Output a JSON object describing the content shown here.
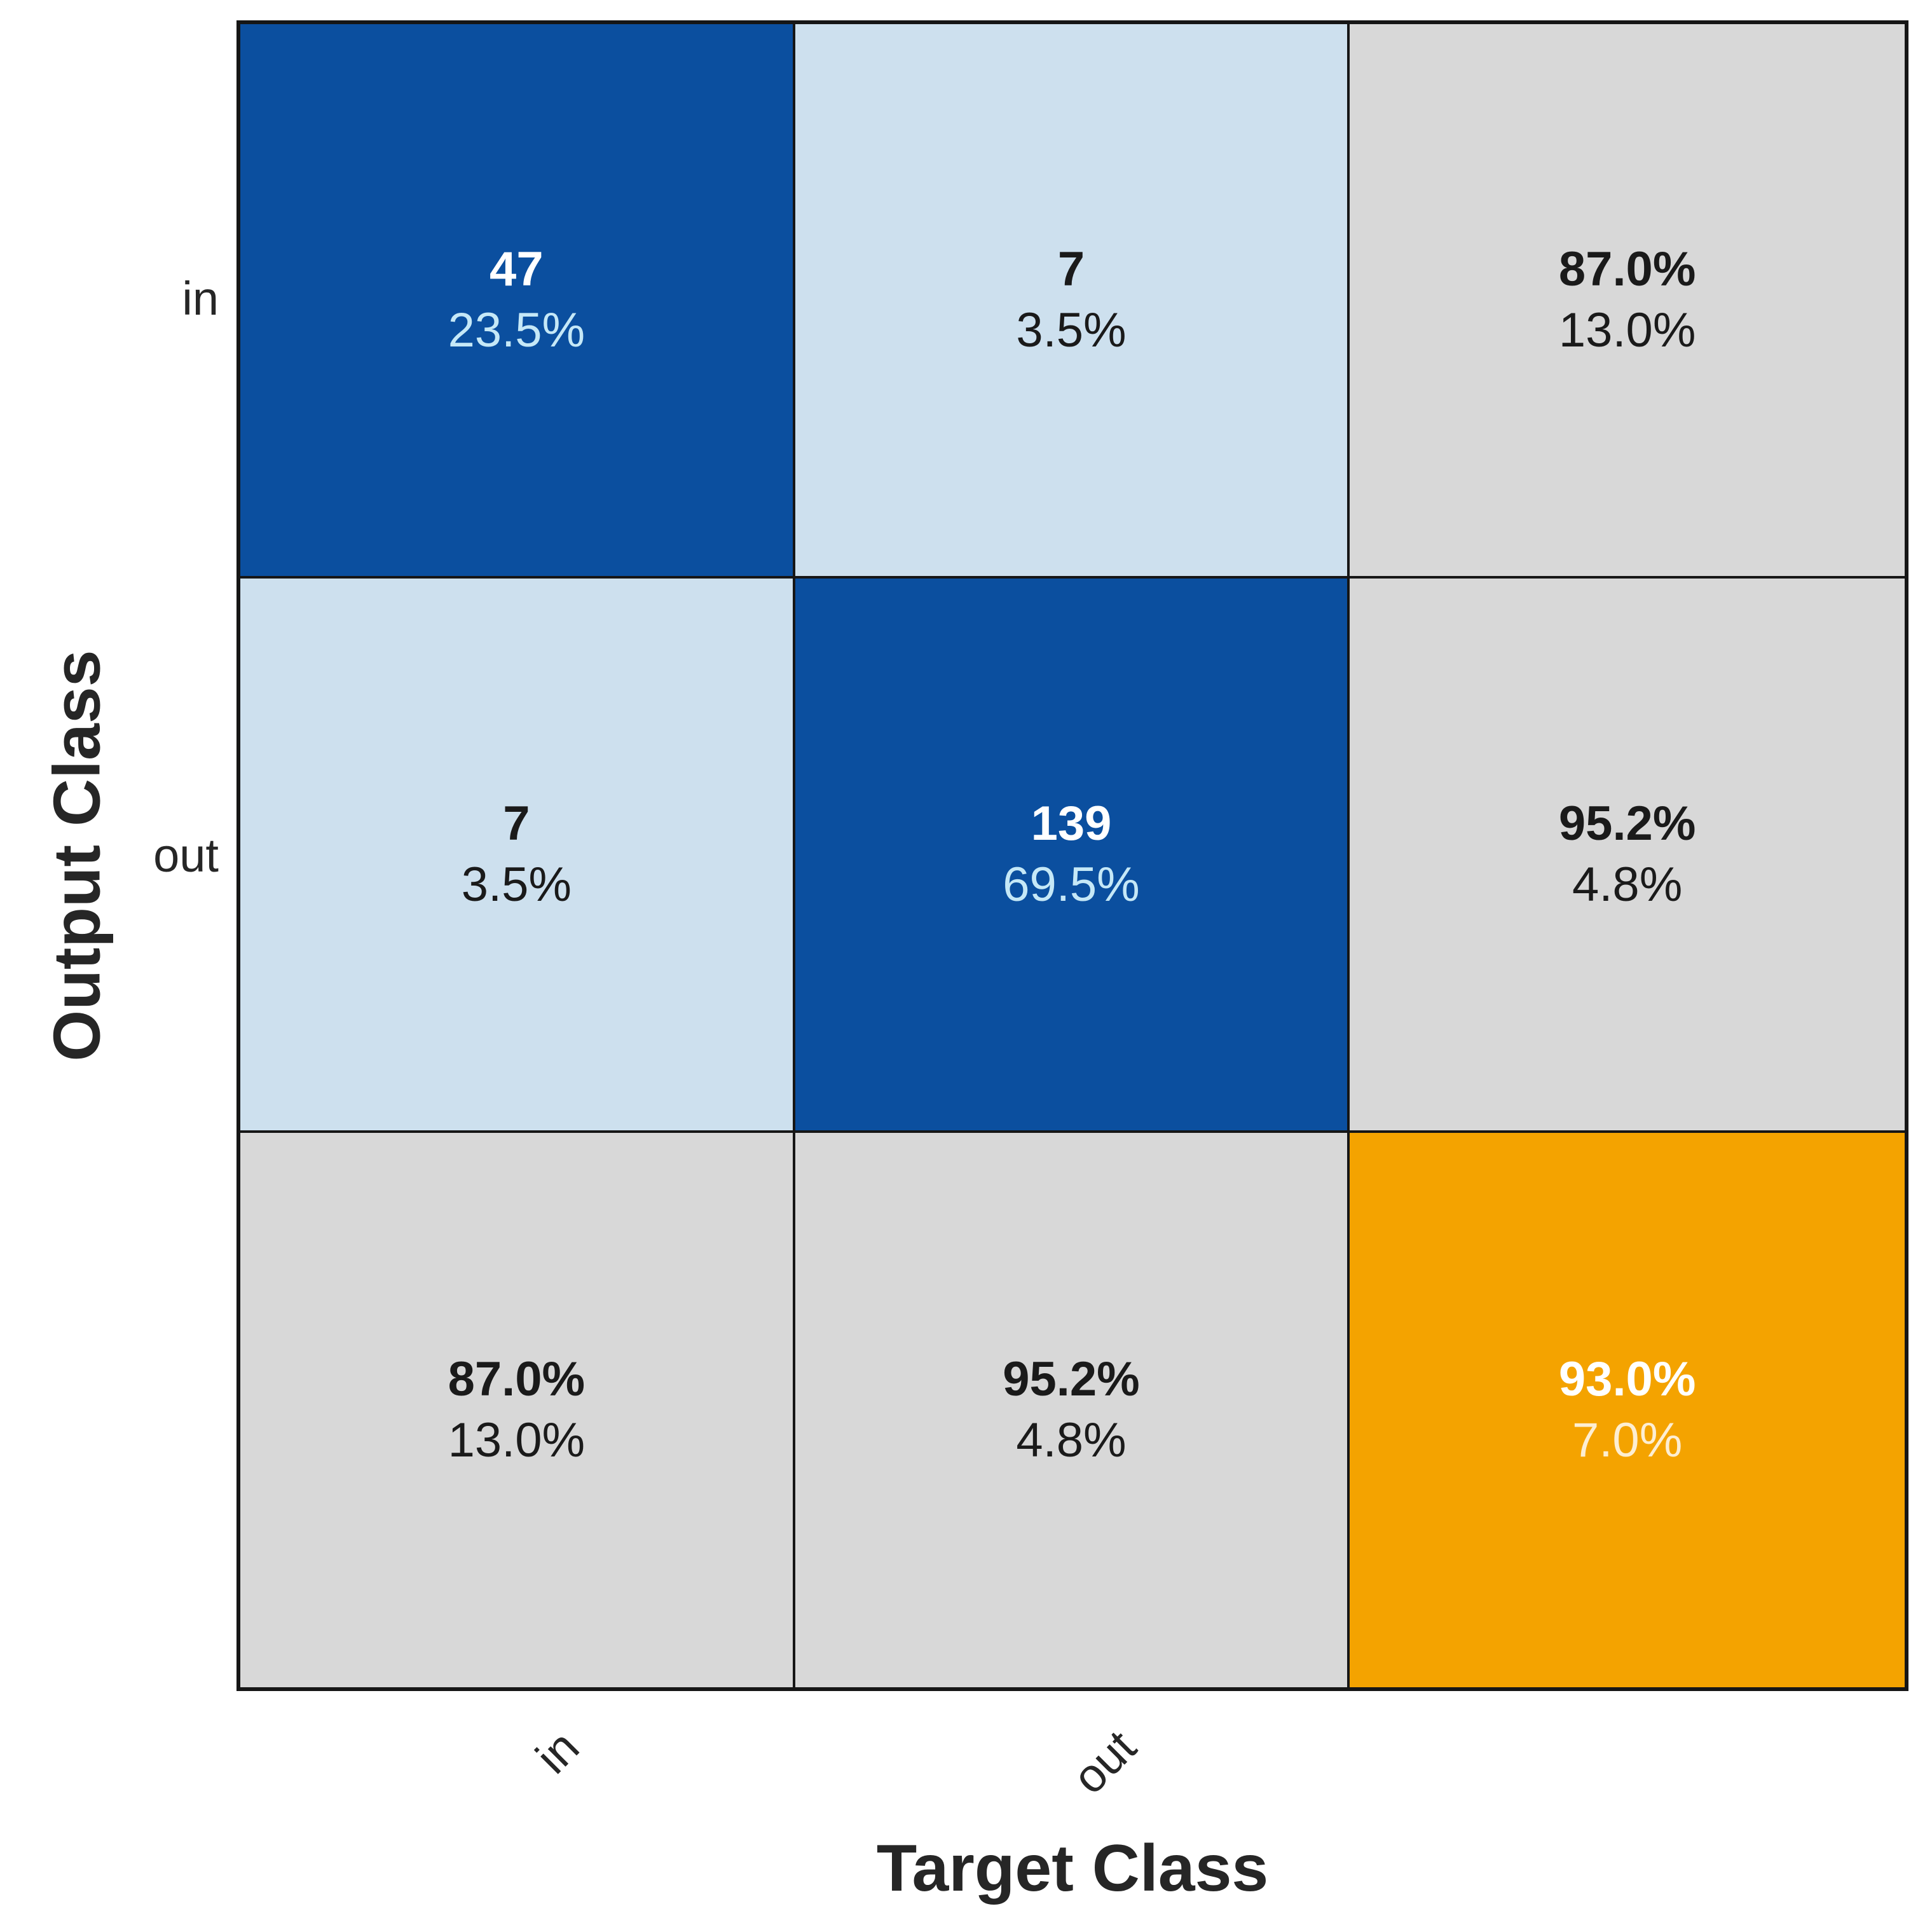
{
  "figure": {
    "kind": "confusion-matrix-plot"
  },
  "axes": {
    "x_label": "Target Class",
    "y_label": "Output Class",
    "x_tick_labels": [
      "in",
      "out"
    ],
    "y_tick_labels": [
      "in",
      "out"
    ]
  },
  "colors": {
    "correct-cell": "#0b4f9f",
    "error-cell": "#cde0ee",
    "summary-cell": "#d8d8d8",
    "total-cell": "#f4a300",
    "count-on-dark": "#ffffff",
    "pct-on-dark": "#c5e8f7",
    "pct-on-total": "#fdeed2",
    "text-dark": "#1a1a1a",
    "axis-text": "#262626",
    "grid-line": "#161616"
  },
  "chart_data": {
    "type": "heatmap",
    "subtype": "confusion-matrix",
    "title": "",
    "xlabel": "Target Class",
    "ylabel": "Output Class",
    "classes": [
      "in",
      "out"
    ],
    "matrix_counts": [
      [
        47,
        7
      ],
      [
        7,
        139
      ]
    ],
    "matrix_percent_of_total": [
      [
        23.5,
        3.5
      ],
      [
        3.5,
        69.5
      ]
    ],
    "row_summary_percent": [
      [
        87.0,
        13.0
      ],
      [
        95.2,
        4.8
      ]
    ],
    "column_summary_percent": [
      [
        87.0,
        13.0
      ],
      [
        95.2,
        4.8
      ]
    ],
    "overall_accuracy_percent": 93.0,
    "overall_error_percent": 7.0,
    "grid": "3x3 (2 classes + summary row/column)",
    "cells": [
      {
        "row": "in",
        "col": "in",
        "line1": "47",
        "line2": "23.5%",
        "kind": "correct"
      },
      {
        "row": "in",
        "col": "out",
        "line1": "7",
        "line2": "3.5%",
        "kind": "error"
      },
      {
        "row": "in",
        "col": "summary",
        "line1": "87.0%",
        "line2": "13.0%",
        "kind": "summary"
      },
      {
        "row": "out",
        "col": "in",
        "line1": "7",
        "line2": "3.5%",
        "kind": "error"
      },
      {
        "row": "out",
        "col": "out",
        "line1": "139",
        "line2": "69.5%",
        "kind": "correct"
      },
      {
        "row": "out",
        "col": "summary",
        "line1": "95.2%",
        "line2": "4.8%",
        "kind": "summary"
      },
      {
        "row": "summary",
        "col": "in",
        "line1": "87.0%",
        "line2": "13.0%",
        "kind": "summary"
      },
      {
        "row": "summary",
        "col": "out",
        "line1": "95.2%",
        "line2": "4.8%",
        "kind": "summary"
      },
      {
        "row": "summary",
        "col": "summary",
        "line1": "93.0%",
        "line2": "7.0%",
        "kind": "total"
      }
    ]
  }
}
